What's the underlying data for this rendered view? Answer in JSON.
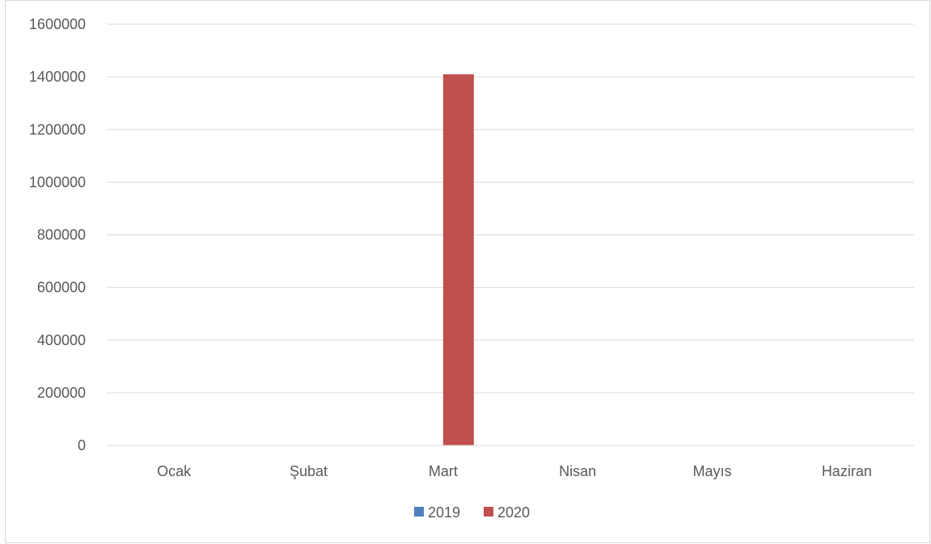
{
  "chart_data": {
    "type": "bar",
    "title": "",
    "xlabel": "",
    "ylabel": "",
    "categories": [
      "Ocak",
      "Şubat",
      "Mart",
      "Nisan",
      "Mayıs",
      "Haziran"
    ],
    "series": [
      {
        "name": "2019",
        "color": "#4f81bd",
        "values": [
          0,
          0,
          0,
          0,
          0,
          0
        ]
      },
      {
        "name": "2020",
        "color": "#c0504d",
        "values": [
          0,
          0,
          1410000,
          0,
          0,
          0
        ]
      }
    ],
    "ylim": [
      0,
      1600000
    ],
    "yticks": [
      "0",
      "200000",
      "400000",
      "600000",
      "800000",
      "1000000",
      "1200000",
      "1400000",
      "1600000"
    ],
    "grid": true,
    "legend_position": "bottom"
  }
}
